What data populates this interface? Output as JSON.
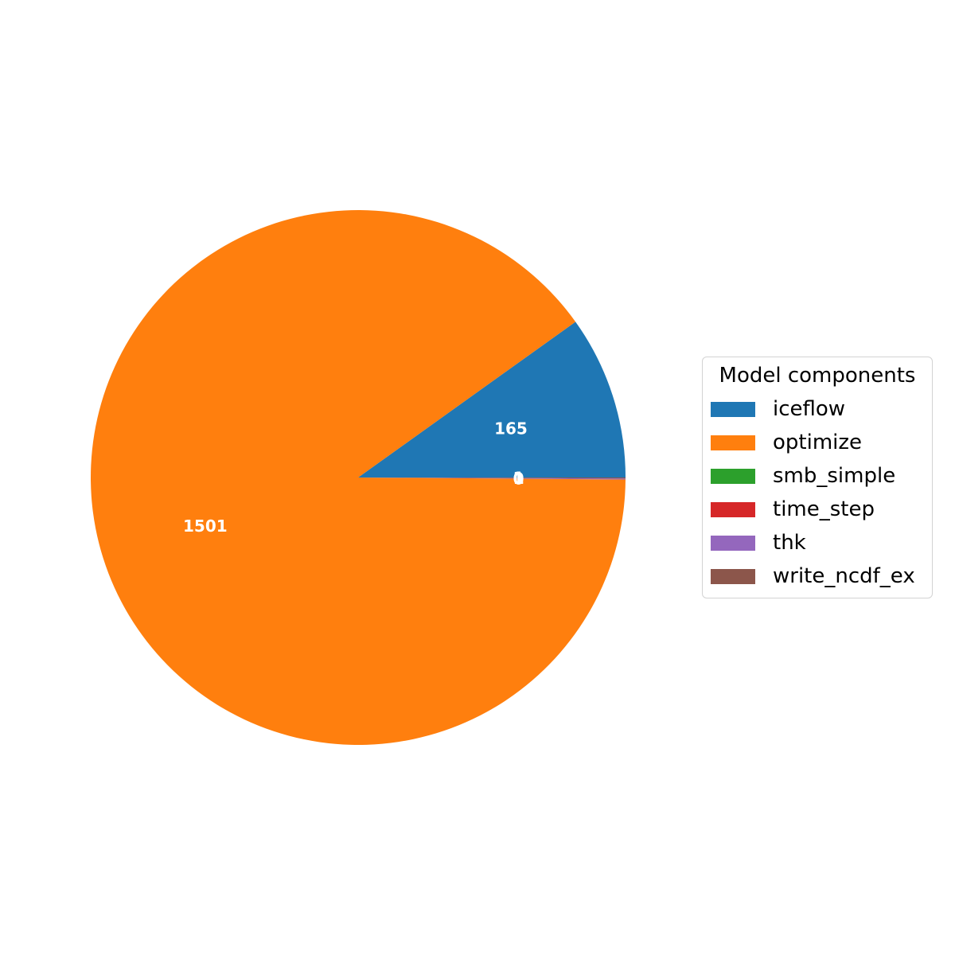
{
  "chart_data": {
    "type": "pie",
    "legend_title": "Model components",
    "legend_placement": "center-right",
    "categories": [
      "iceflow",
      "optimize",
      "smb_simple",
      "time_step",
      "thk",
      "write_ncdf_ex"
    ],
    "values": [
      165,
      1501,
      0,
      0,
      1,
      1
    ],
    "labels": [
      "165",
      "1501",
      "0",
      "0",
      "1",
      "1"
    ],
    "colors": [
      "#1f77b4",
      "#ff7f0e",
      "#2ca02c",
      "#d62728",
      "#9467bd",
      "#8c564b"
    ],
    "start_angle_deg": 0,
    "direction": "counterclockwise"
  }
}
